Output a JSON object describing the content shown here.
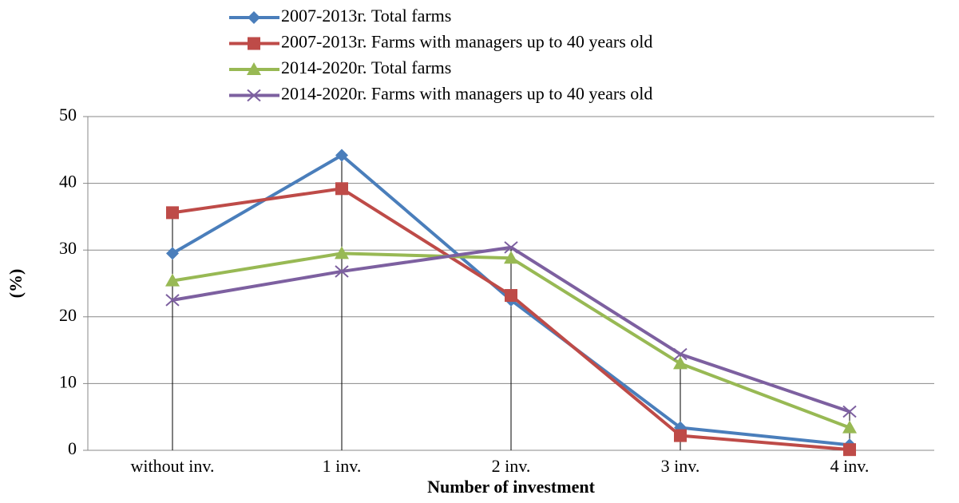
{
  "chart_data": {
    "type": "line",
    "x_label": "Number of investment",
    "y_label": "(%)",
    "categories": [
      "without inv.",
      "1 inv.",
      "2 inv.",
      "3 inv.",
      "4 inv."
    ],
    "series": [
      {
        "name": "2007-2013г. Total farms",
        "color": "#4a7ebb",
        "marker": "diamond",
        "values": [
          29.5,
          44.2,
          22.5,
          3.4,
          0.8
        ]
      },
      {
        "name": "2007-2013г. Farms with managers up to 40 years old",
        "color": "#be4b48",
        "marker": "square",
        "values": [
          35.6,
          39.2,
          23.2,
          2.2,
          0.1
        ]
      },
      {
        "name": "2014-2020г. Total farms",
        "color": "#98b954",
        "marker": "triangle",
        "values": [
          25.4,
          29.5,
          28.8,
          13.0,
          3.4
        ]
      },
      {
        "name": "2014-2020г. Farms with managers up to 40 years old",
        "color": "#7d60a0",
        "marker": "x",
        "values": [
          22.5,
          26.8,
          30.4,
          14.4,
          5.8
        ]
      }
    ],
    "ylim": [
      0,
      50
    ],
    "yticks": [
      0,
      10,
      20,
      30,
      40,
      50
    ],
    "grid": true,
    "legend": "top"
  }
}
